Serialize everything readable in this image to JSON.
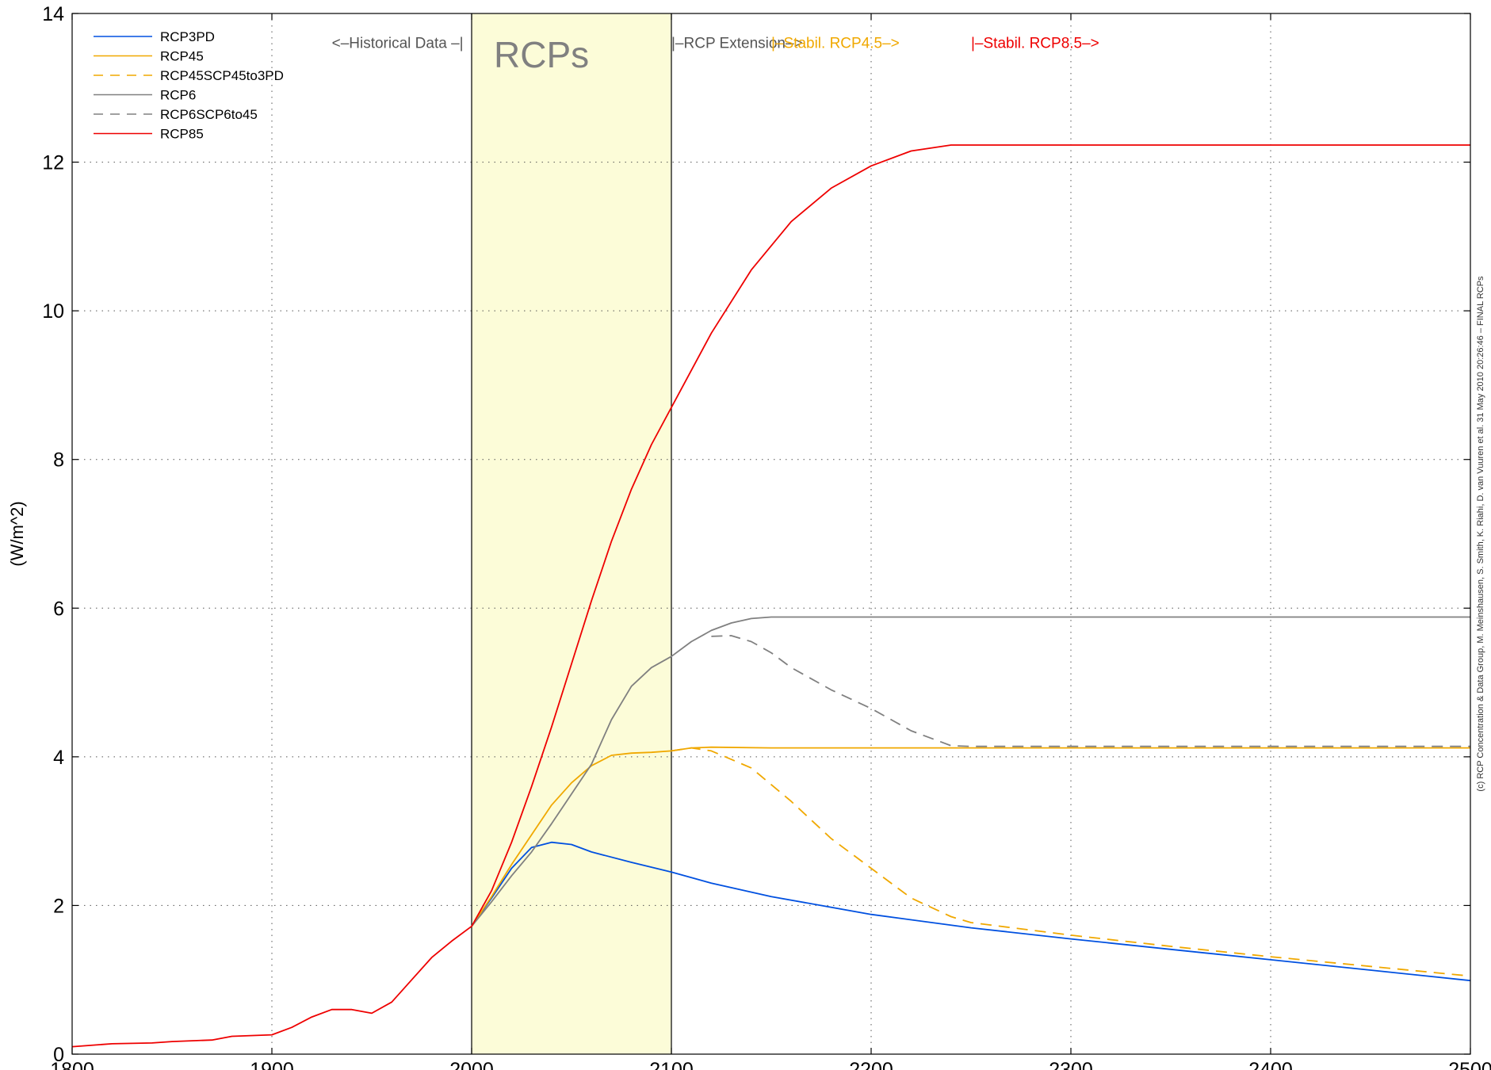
{
  "chart_data": {
    "type": "line",
    "title": "",
    "xlabel": "",
    "ylabel": "(W/m^2)",
    "xlim": [
      1800,
      2500
    ],
    "ylim": [
      0,
      14
    ],
    "x_ticks": [
      "1800",
      "1900",
      "2000",
      "2100",
      "2200",
      "2300",
      "2400",
      "2500"
    ],
    "y_ticks": [
      "0",
      "2",
      "4",
      "6",
      "8",
      "10",
      "12",
      "14"
    ],
    "grid": true,
    "legend_position": "top-left",
    "shaded_region": {
      "x_start": 2000,
      "x_end": 2100,
      "color": "#fcfcd8",
      "label": "RCPs"
    },
    "annotations": [
      {
        "text": "<–Historical Data –|",
        "color": "#555555",
        "x": 1930,
        "y": 13.6
      },
      {
        "text": "|–RCP Extension–>",
        "color": "#555555",
        "x": 2100,
        "y": 13.6
      },
      {
        "text": "|–Stabil. RCP4.5–>",
        "color": "#f0a800",
        "x": 2150,
        "y": 13.6
      },
      {
        "text": "|–Stabil. RCP8.5–>",
        "color": "#ee0000",
        "x": 2250,
        "y": 13.6
      }
    ],
    "copyright": "(c) RCP Concentration & Data Group, M. Meinshausen, S. Smith, K. Riahi, D. van Vuuren et al. 31 May 2010 20:26:46 – FINAL RCPs",
    "series": [
      {
        "name": "RCP3PD",
        "color": "#0050e0",
        "dash": false,
        "x": [
          2000,
          2010,
          2020,
          2030,
          2040,
          2050,
          2060,
          2080,
          2100,
          2120,
          2150,
          2200,
          2250,
          2300,
          2350,
          2400,
          2450,
          2500
        ],
        "y": [
          1.72,
          2.1,
          2.5,
          2.78,
          2.85,
          2.82,
          2.72,
          2.58,
          2.45,
          2.3,
          2.12,
          1.88,
          1.7,
          1.55,
          1.41,
          1.27,
          1.13,
          0.99
        ]
      },
      {
        "name": "RCP45",
        "color": "#f0a800",
        "dash": false,
        "x": [
          2000,
          2010,
          2020,
          2030,
          2040,
          2050,
          2060,
          2070,
          2080,
          2090,
          2100,
          2110,
          2120,
          2150,
          2200,
          2300,
          2400,
          2500
        ],
        "y": [
          1.72,
          2.12,
          2.55,
          2.95,
          3.35,
          3.65,
          3.88,
          4.02,
          4.05,
          4.06,
          4.08,
          4.12,
          4.13,
          4.12,
          4.12,
          4.12,
          4.12,
          4.12
        ]
      },
      {
        "name": "RCP45SCP45to3PD",
        "color": "#f0a800",
        "dash": true,
        "x": [
          2100,
          2110,
          2120,
          2140,
          2160,
          2180,
          2200,
          2220,
          2240,
          2250,
          2300,
          2350,
          2400,
          2450,
          2500
        ],
        "y": [
          4.08,
          4.12,
          4.08,
          3.85,
          3.4,
          2.9,
          2.5,
          2.1,
          1.85,
          1.77,
          1.6,
          1.45,
          1.31,
          1.18,
          1.05
        ]
      },
      {
        "name": "RCP6",
        "color": "#808080",
        "dash": false,
        "x": [
          2000,
          2010,
          2020,
          2030,
          2040,
          2050,
          2060,
          2070,
          2080,
          2090,
          2100,
          2110,
          2120,
          2130,
          2140,
          2150,
          2200,
          2300,
          2400,
          2500
        ],
        "y": [
          1.72,
          2.05,
          2.4,
          2.72,
          3.1,
          3.5,
          3.9,
          4.5,
          4.95,
          5.2,
          5.35,
          5.55,
          5.7,
          5.8,
          5.86,
          5.88,
          5.88,
          5.88,
          5.88,
          5.88
        ]
      },
      {
        "name": "RCP6SCP6to45",
        "color": "#808080",
        "dash": true,
        "x": [
          2120,
          2130,
          2140,
          2150,
          2160,
          2180,
          2200,
          2220,
          2240,
          2250,
          2300,
          2400,
          2500
        ],
        "y": [
          5.62,
          5.63,
          5.55,
          5.4,
          5.2,
          4.9,
          4.65,
          4.35,
          4.15,
          4.14,
          4.14,
          4.14,
          4.14
        ]
      },
      {
        "name": "RCP85",
        "color": "#ee0000",
        "dash": false,
        "x": [
          1800,
          1820,
          1840,
          1850,
          1860,
          1870,
          1880,
          1900,
          1910,
          1920,
          1930,
          1940,
          1950,
          1960,
          1970,
          1980,
          1990,
          2000,
          2010,
          2020,
          2030,
          2040,
          2050,
          2060,
          2070,
          2080,
          2090,
          2100,
          2120,
          2140,
          2160,
          2180,
          2200,
          2220,
          2240,
          2300,
          2400,
          2500
        ],
        "y": [
          0.1,
          0.14,
          0.15,
          0.17,
          0.18,
          0.19,
          0.24,
          0.26,
          0.36,
          0.5,
          0.6,
          0.6,
          0.55,
          0.7,
          1.0,
          1.3,
          1.52,
          1.72,
          2.2,
          2.85,
          3.6,
          4.4,
          5.25,
          6.1,
          6.9,
          7.6,
          8.2,
          8.7,
          9.7,
          10.55,
          11.2,
          11.65,
          11.95,
          12.15,
          12.23,
          12.23,
          12.23,
          12.23
        ]
      }
    ]
  }
}
